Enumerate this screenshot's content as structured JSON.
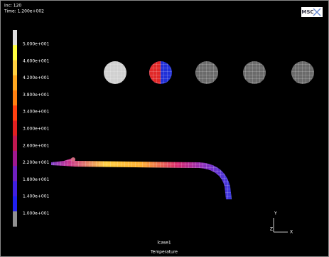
{
  "header": {
    "increment": "Inc:  120",
    "time": "Time:  1.200e+002",
    "logo": "MSC"
  },
  "legend": {
    "labels": [
      "5.000e+001",
      "4.600e+001",
      "4.200e+001",
      "3.800e+001",
      "3.400e+001",
      "3.000e+001",
      "2.600e+001",
      "2.200e+001",
      "1.800e+001",
      "1.400e+001",
      "1.000e+001"
    ]
  },
  "triad": {
    "y": "Y",
    "z": "Z",
    "x": "X"
  },
  "footer": {
    "loadcase": "lcase1",
    "quantity": "Temperature"
  }
}
